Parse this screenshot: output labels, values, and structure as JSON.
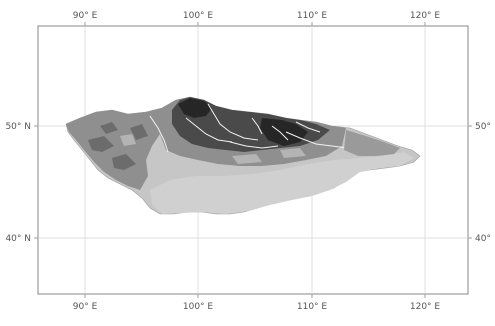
{
  "map": {
    "colors": {
      "background": "#ffffff",
      "frame": "#8a8a8a",
      "graticule": "#d4d4d4",
      "land_light": "#c6c6c6",
      "land_mid": "#8f8f8f",
      "land_dark": "#4a4a4a",
      "land_darkest": "#262626",
      "rivers": "#f2f2f2"
    },
    "top_labels": [
      "90° E",
      "100° E",
      "110° E",
      "120° E"
    ],
    "bottom_labels": [
      "90° E",
      "100° E",
      "110° E",
      "120° E"
    ],
    "left_labels": [
      "50° N",
      "40° N"
    ],
    "right_labels": [
      "50°",
      "40°"
    ]
  }
}
